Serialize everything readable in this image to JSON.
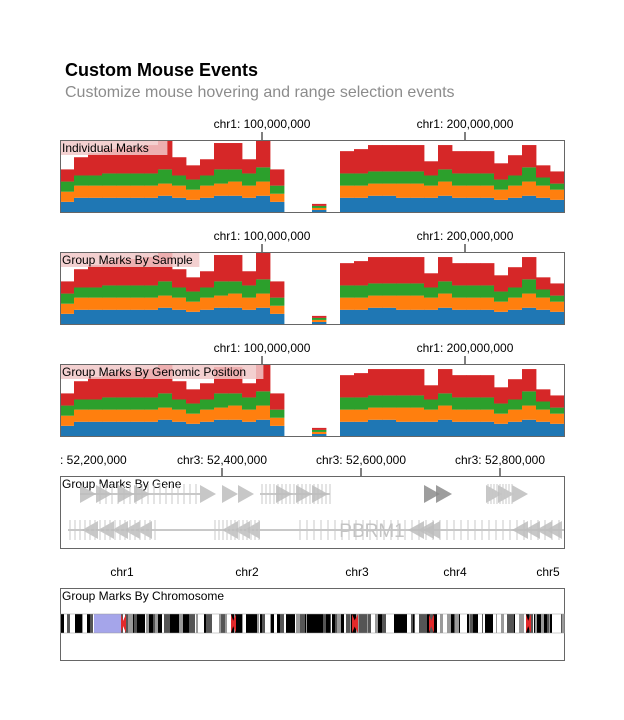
{
  "page": {
    "title": "Custom Mouse Events",
    "subtitle": "Customize mouse hovering and range selection events"
  },
  "colors": {
    "blue": "#1f77b4",
    "orange": "#ff7f0e",
    "green": "#2ca02c",
    "red": "#d62728",
    "track_border": "#666666",
    "gene": "#bdbdbd",
    "gene_highlight": "#8c8c8c",
    "label_bg": "#f1c8c8",
    "band_highlight": "#a5a5ea",
    "centromere": "#e3292b"
  },
  "chart_data": [
    {
      "type": "bar",
      "stacked": true,
      "title": "Individual Marks",
      "x_ticks": [
        "chr1: 100,000,000",
        "chr1: 200,000,000"
      ],
      "series_colors": [
        "#1f77b4",
        "#ff7f0e",
        "#2ca02c",
        "#d62728"
      ],
      "values": [
        [
          5,
          5,
          5,
          6
        ],
        [
          7,
          6,
          5,
          9
        ],
        [
          7,
          6,
          5,
          11
        ],
        [
          7,
          6,
          6,
          12
        ],
        [
          7,
          6,
          6,
          13
        ],
        [
          7,
          6,
          6,
          13
        ],
        [
          7,
          6,
          6,
          14
        ],
        [
          8,
          6,
          7,
          14
        ],
        [
          7,
          6,
          5,
          9
        ],
        [
          6,
          5,
          5,
          7
        ],
        [
          7,
          6,
          5,
          8
        ],
        [
          8,
          6,
          7,
          13
        ],
        [
          8,
          7,
          6,
          13
        ],
        [
          7,
          6,
          6,
          7
        ],
        [
          8,
          7,
          7,
          13
        ],
        [
          5,
          4,
          4,
          8
        ],
        [
          0,
          0,
          0,
          0
        ],
        [
          0,
          0,
          0,
          0
        ],
        [
          1,
          1,
          1,
          1
        ],
        [
          0,
          0,
          0,
          0
        ],
        [
          7,
          6,
          6,
          11
        ],
        [
          7,
          6,
          6,
          12
        ],
        [
          8,
          6,
          6,
          13
        ],
        [
          8,
          6,
          6,
          13
        ],
        [
          7,
          7,
          6,
          13
        ],
        [
          7,
          7,
          6,
          13
        ],
        [
          7,
          6,
          5,
          7
        ],
        [
          8,
          7,
          6,
          12
        ],
        [
          7,
          6,
          6,
          11
        ],
        [
          7,
          6,
          6,
          11
        ],
        [
          7,
          6,
          6,
          11
        ],
        [
          6,
          5,
          5,
          8
        ],
        [
          7,
          6,
          5,
          10
        ],
        [
          8,
          7,
          7,
          11
        ],
        [
          7,
          6,
          4,
          6
        ],
        [
          6,
          5,
          3,
          6
        ]
      ]
    },
    {
      "type": "bar",
      "stacked": true,
      "title": "Group Marks By Sample",
      "x_ticks": [
        "chr1: 100,000,000",
        "chr1: 200,000,000"
      ],
      "series_colors": [
        "#1f77b4",
        "#ff7f0e",
        "#2ca02c",
        "#d62728"
      ],
      "values": [
        [
          5,
          5,
          5,
          6
        ],
        [
          7,
          6,
          5,
          9
        ],
        [
          7,
          6,
          5,
          11
        ],
        [
          7,
          6,
          6,
          12
        ],
        [
          7,
          6,
          6,
          13
        ],
        [
          7,
          6,
          6,
          13
        ],
        [
          7,
          6,
          6,
          14
        ],
        [
          8,
          6,
          7,
          14
        ],
        [
          7,
          6,
          5,
          9
        ],
        [
          6,
          5,
          5,
          7
        ],
        [
          7,
          6,
          5,
          8
        ],
        [
          8,
          6,
          7,
          13
        ],
        [
          8,
          7,
          6,
          13
        ],
        [
          7,
          6,
          6,
          7
        ],
        [
          8,
          7,
          7,
          13
        ],
        [
          5,
          4,
          4,
          8
        ],
        [
          0,
          0,
          0,
          0
        ],
        [
          0,
          0,
          0,
          0
        ],
        [
          1,
          1,
          1,
          1
        ],
        [
          0,
          0,
          0,
          0
        ],
        [
          7,
          6,
          6,
          11
        ],
        [
          7,
          6,
          6,
          12
        ],
        [
          8,
          6,
          6,
          13
        ],
        [
          8,
          6,
          6,
          13
        ],
        [
          7,
          7,
          6,
          13
        ],
        [
          7,
          7,
          6,
          13
        ],
        [
          7,
          6,
          5,
          7
        ],
        [
          8,
          7,
          6,
          12
        ],
        [
          7,
          6,
          6,
          11
        ],
        [
          7,
          6,
          6,
          11
        ],
        [
          7,
          6,
          6,
          11
        ],
        [
          6,
          5,
          5,
          8
        ],
        [
          7,
          6,
          5,
          10
        ],
        [
          8,
          7,
          7,
          11
        ],
        [
          7,
          6,
          4,
          6
        ],
        [
          6,
          5,
          3,
          6
        ]
      ]
    },
    {
      "type": "bar",
      "stacked": true,
      "title": "Group Marks By Genomic Position",
      "x_ticks": [
        "chr1: 100,000,000",
        "chr1: 200,000,000"
      ],
      "series_colors": [
        "#1f77b4",
        "#ff7f0e",
        "#2ca02c",
        "#d62728"
      ],
      "values": [
        [
          5,
          5,
          5,
          6
        ],
        [
          7,
          6,
          5,
          9
        ],
        [
          7,
          6,
          5,
          11
        ],
        [
          7,
          6,
          6,
          12
        ],
        [
          7,
          6,
          6,
          13
        ],
        [
          7,
          6,
          6,
          13
        ],
        [
          7,
          6,
          6,
          14
        ],
        [
          8,
          6,
          7,
          14
        ],
        [
          7,
          6,
          5,
          9
        ],
        [
          6,
          5,
          5,
          7
        ],
        [
          7,
          6,
          5,
          8
        ],
        [
          8,
          6,
          7,
          13
        ],
        [
          8,
          7,
          6,
          13
        ],
        [
          7,
          6,
          6,
          7
        ],
        [
          8,
          7,
          7,
          13
        ],
        [
          5,
          4,
          4,
          8
        ],
        [
          0,
          0,
          0,
          0
        ],
        [
          0,
          0,
          0,
          0
        ],
        [
          1,
          1,
          1,
          1
        ],
        [
          0,
          0,
          0,
          0
        ],
        [
          7,
          6,
          6,
          11
        ],
        [
          7,
          6,
          6,
          12
        ],
        [
          8,
          6,
          6,
          13
        ],
        [
          8,
          6,
          6,
          13
        ],
        [
          7,
          7,
          6,
          13
        ],
        [
          7,
          7,
          6,
          13
        ],
        [
          7,
          6,
          5,
          7
        ],
        [
          8,
          7,
          6,
          12
        ],
        [
          7,
          6,
          6,
          11
        ],
        [
          7,
          6,
          6,
          11
        ],
        [
          7,
          6,
          6,
          11
        ],
        [
          6,
          5,
          5,
          8
        ],
        [
          7,
          6,
          5,
          10
        ],
        [
          8,
          7,
          7,
          11
        ],
        [
          7,
          6,
          4,
          6
        ],
        [
          6,
          5,
          3,
          6
        ]
      ]
    },
    {
      "type": "gene-annotation",
      "title": "Group Marks By Gene",
      "x_ticks": [
        ": 52,200,000",
        "chr3: 52,400,000",
        "chr3: 52,600,000",
        "chr3: 52,800,000"
      ],
      "gene_label": "PBRM1"
    },
    {
      "type": "ideogram",
      "title": "Group Marks By Chromosome",
      "chromosomes": [
        "chr1",
        "chr2",
        "chr3",
        "chr4",
        "chr5"
      ]
    }
  ]
}
